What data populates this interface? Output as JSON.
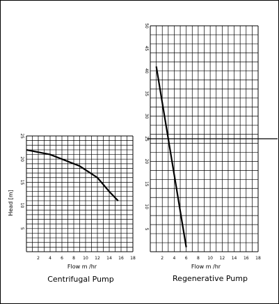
{
  "chart_data": [
    {
      "type": "line",
      "title": "Centrifugal Pump",
      "xlabel": "Flow m /hr",
      "ylabel": "Head [m]",
      "xlim": [
        0,
        18
      ],
      "ylim": [
        0,
        25
      ],
      "x_ticks": [
        "2",
        "4",
        "6",
        "8",
        "10",
        "12",
        "14",
        "16",
        "18"
      ],
      "y_ticks": [
        "5",
        "10",
        "15",
        "20",
        "25"
      ],
      "grid": true,
      "x": [
        0,
        4,
        7,
        9,
        12,
        14,
        15.5
      ],
      "y": [
        22,
        21,
        19.5,
        18.5,
        16,
        13,
        11
      ]
    },
    {
      "type": "line",
      "title": "Regenerative Pump",
      "xlabel": "Flow m /hr",
      "ylabel": "",
      "xlim": [
        0,
        18
      ],
      "ylim": [
        0,
        50
      ],
      "x_ticks": [
        "2",
        "4",
        "6",
        "8",
        "10",
        "12",
        "14",
        "16",
        "18"
      ],
      "y_ticks": [
        "5",
        "10",
        "15",
        "20",
        "25",
        "30",
        "35",
        "40",
        "45",
        "50"
      ],
      "grid": true,
      "reference_y": 25,
      "x": [
        1,
        6
      ],
      "y": [
        41,
        1
      ]
    }
  ]
}
